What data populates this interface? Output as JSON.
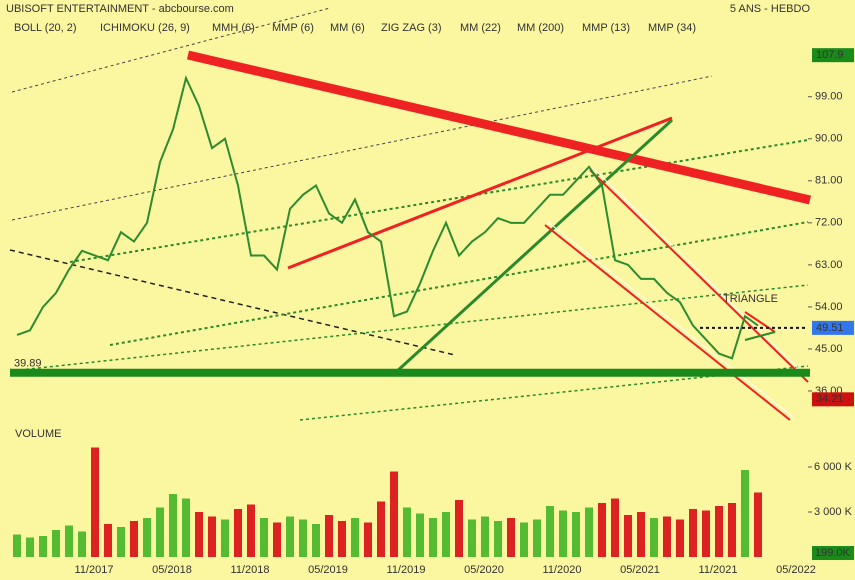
{
  "chart_data": {
    "type": "line",
    "title": "UBISOFT ENTERTAINMENT - abcbourse.com",
    "subtitle": "5 ANS - HEBDO",
    "indicators": [
      {
        "name": "BOLL (20, 2)",
        "color": "#2233cc"
      },
      {
        "name": "ICHIMOKU (26, 9)",
        "color": "#1a1acc"
      },
      {
        "name": "MMH (6)",
        "color": "#dd2222"
      },
      {
        "name": "MMP (6)",
        "color": "#2233cc"
      },
      {
        "name": "MM (6)",
        "color": "#c8be00"
      },
      {
        "name": "ZIG ZAG (3)",
        "color": "#111111"
      },
      {
        "name": "MM (22)",
        "color": "#1e90ff"
      },
      {
        "name": "MM (200)",
        "color": "#dd2222"
      },
      {
        "name": "MMP (13)",
        "color": "#111111"
      },
      {
        "name": "MMP (34)",
        "color": "#dd2222"
      }
    ],
    "categories": [
      null,
      null,
      null,
      null,
      null,
      null,
      "11/2017",
      null,
      null,
      null,
      null,
      null,
      "05/2018",
      null,
      null,
      null,
      null,
      null,
      "11/2018",
      null,
      null,
      null,
      null,
      null,
      "05/2019",
      null,
      null,
      null,
      null,
      null,
      "11/2019",
      null,
      null,
      null,
      null,
      null,
      "05/2020",
      null,
      null,
      null,
      null,
      null,
      "11/2020",
      null,
      null,
      null,
      null,
      null,
      "05/2021",
      null,
      null,
      null,
      null,
      null,
      "11/2021",
      null,
      null,
      null,
      null,
      null,
      "05/2022"
    ],
    "series": [
      {
        "name": "Cours",
        "color": "#2e8b2e",
        "values": [
          48,
          49,
          54,
          57,
          62,
          66,
          65,
          64,
          70,
          68,
          72,
          85,
          92,
          103,
          97,
          88,
          90,
          80,
          65,
          65,
          62,
          75,
          78,
          80,
          74,
          72,
          77,
          70,
          68,
          52,
          53,
          59,
          66,
          72,
          65,
          68,
          70,
          73,
          72,
          72,
          75,
          78,
          78,
          81,
          84,
          80,
          64,
          63,
          60,
          60,
          57,
          55,
          50,
          47,
          44,
          43,
          52,
          50,
          null,
          null,
          null
        ]
      }
    ],
    "ylim": [
      30,
      115
    ],
    "yticks": [
      {
        "value": 36,
        "label": "36.00"
      },
      {
        "value": 45,
        "label": "45.00"
      },
      {
        "value": 54,
        "label": "54.00"
      },
      {
        "value": 63,
        "label": "63.00"
      },
      {
        "value": 72,
        "label": "72.00"
      },
      {
        "value": 81,
        "label": "81.00"
      },
      {
        "value": 90,
        "label": "90.00"
      },
      {
        "value": 99,
        "label": "99.00"
      }
    ],
    "markers": [
      {
        "value": 107.9,
        "color": "#1a8a1a"
      },
      {
        "value": 49.51,
        "color": "#3377ee"
      },
      {
        "value": 34.21,
        "color": "#cc1111"
      }
    ],
    "support": {
      "value": 39.89,
      "color": "#1a8a1a"
    },
    "annotation": "TRIANGLE",
    "volume": {
      "title": "VOLUME",
      "values": [
        1500,
        1300,
        1400,
        1800,
        2100,
        1700,
        7300,
        2200,
        2000,
        2400,
        2600,
        3300,
        4200,
        3900,
        3000,
        2700,
        2500,
        3200,
        3500,
        2600,
        2300,
        2700,
        2500,
        2200,
        2800,
        2400,
        2600,
        2300,
        3700,
        5700,
        3300,
        2900,
        2600,
        3000,
        3800,
        2500,
        2700,
        2400,
        2600,
        2300,
        2500,
        3400,
        3100,
        3000,
        3300,
        3600,
        3900,
        2800,
        3000,
        2600,
        2700,
        2500,
        3200,
        3100,
        3400,
        3600,
        5800,
        4300,
        null,
        null,
        null
      ],
      "up_color": "#55bb33",
      "down_color": "#dd2222",
      "ylim": [
        0,
        7400
      ],
      "yticks": [
        {
          "value": 3000,
          "label": "3 000 K"
        },
        {
          "value": 6000,
          "label": "6 000 K"
        }
      ],
      "marker": {
        "value": 199,
        "label": "199.0K",
        "color": "#1a8a1a"
      }
    }
  }
}
